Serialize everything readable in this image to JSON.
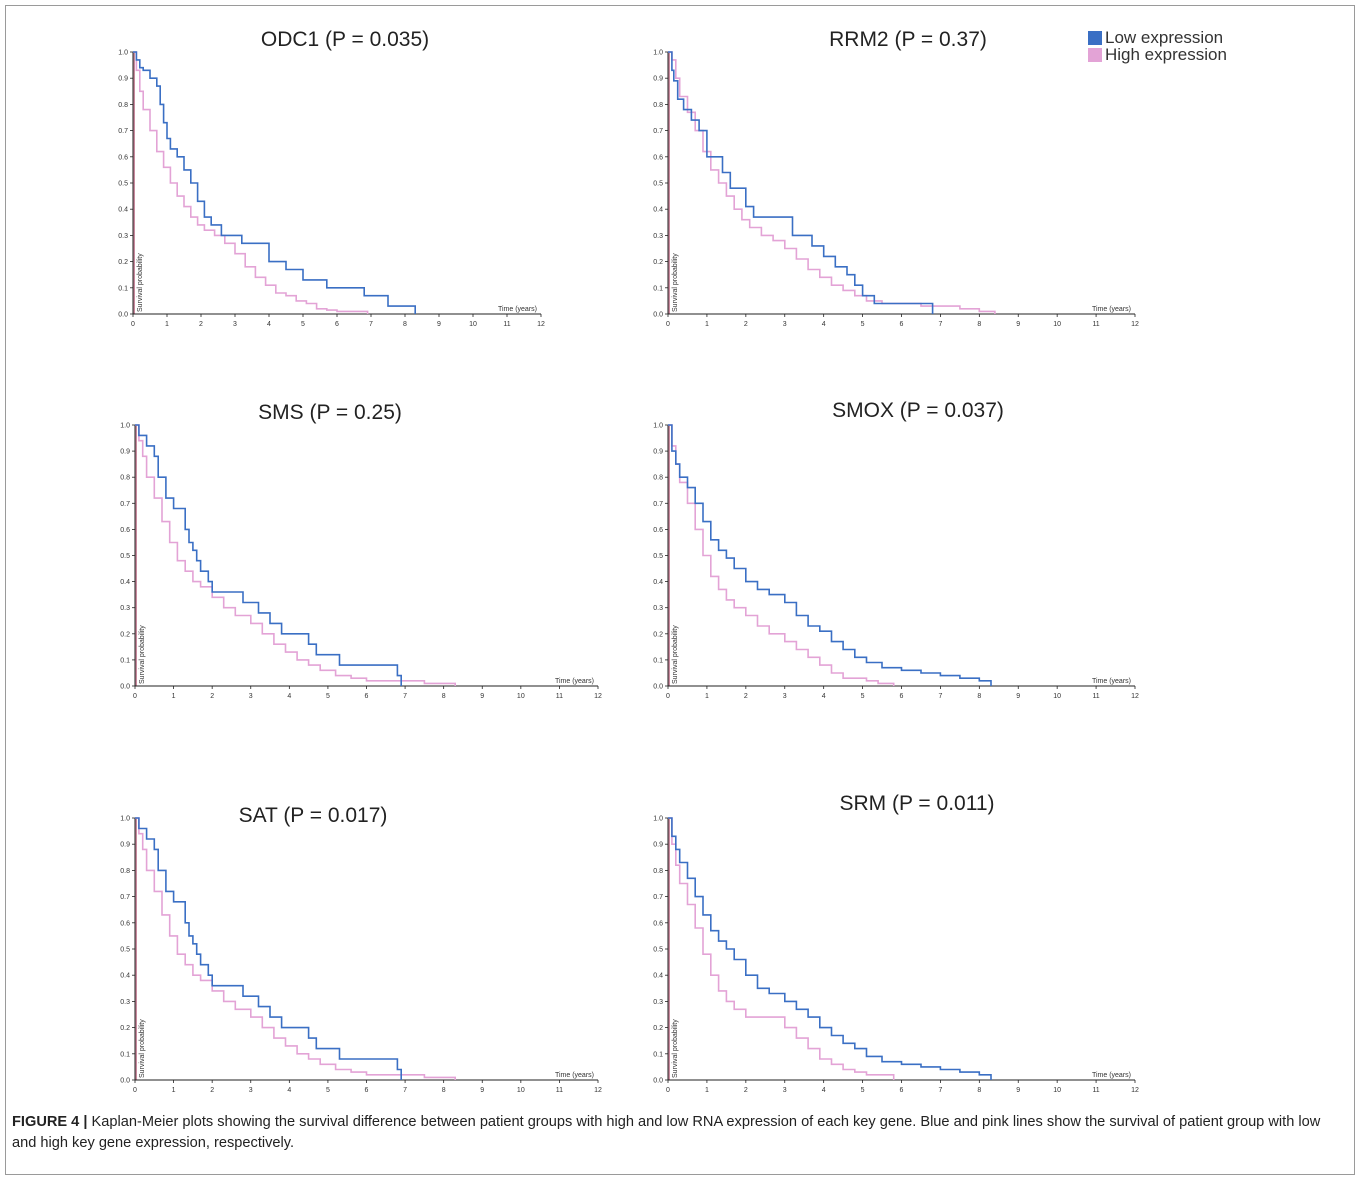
{
  "legend": {
    "low": {
      "label": "Low expression",
      "color": "#3a6fc4"
    },
    "high": {
      "label": "High expression",
      "color": "#e3a3d6"
    }
  },
  "caption": {
    "prefix": "FIGURE 4 |",
    "text": "Kaplan-Meier plots showing the survival difference between patient groups with high and low RNA expression of each key gene. Blue and pink lines show the survival of patient group with low and high key gene expression, respectively."
  },
  "chart_data": [
    {
      "type": "line",
      "title": "ODC1 (P = 0.035)",
      "xlabel": "Time (years)",
      "ylabel": "Survival probability",
      "xlim": [
        0,
        12
      ],
      "ylim": [
        0,
        1
      ],
      "x_ticks": [
        "0",
        "1",
        "2",
        "3",
        "4",
        "5",
        "6",
        "7",
        "8",
        "9",
        "10",
        "11",
        "12"
      ],
      "y_ticks": [
        "0.0",
        "0.1",
        "0.2",
        "0.3",
        "0.4",
        "0.5",
        "0.6",
        "0.7",
        "0.8",
        "0.9",
        "1.0"
      ],
      "series": [
        {
          "name": "Low expression",
          "x": [
            0,
            0.1,
            0.2,
            0.3,
            0.5,
            0.7,
            0.8,
            0.9,
            1.0,
            1.1,
            1.3,
            1.5,
            1.7,
            1.9,
            2.1,
            2.3,
            2.6,
            3.2,
            4.0,
            4.5,
            5.0,
            5.7,
            6.3,
            6.8,
            7.5,
            8.0,
            8.3
          ],
          "y": [
            1.0,
            0.97,
            0.94,
            0.93,
            0.9,
            0.87,
            0.8,
            0.73,
            0.67,
            0.63,
            0.6,
            0.55,
            0.5,
            0.43,
            0.37,
            0.34,
            0.3,
            0.27,
            0.2,
            0.17,
            0.13,
            0.1,
            0.1,
            0.07,
            0.03,
            0.03,
            0.0
          ]
        },
        {
          "name": "High expression",
          "x": [
            0,
            0.1,
            0.2,
            0.3,
            0.5,
            0.7,
            0.9,
            1.1,
            1.3,
            1.5,
            1.7,
            1.9,
            2.1,
            2.4,
            2.7,
            3.0,
            3.3,
            3.6,
            3.9,
            4.2,
            4.5,
            4.8,
            5.1,
            5.4,
            5.7,
            6.0,
            6.5,
            6.9
          ],
          "y": [
            1.0,
            0.93,
            0.85,
            0.78,
            0.7,
            0.62,
            0.56,
            0.5,
            0.45,
            0.41,
            0.37,
            0.34,
            0.32,
            0.3,
            0.27,
            0.23,
            0.18,
            0.14,
            0.11,
            0.08,
            0.07,
            0.05,
            0.04,
            0.02,
            0.015,
            0.01,
            0.01,
            0.0
          ]
        }
      ]
    },
    {
      "type": "line",
      "title": "RRM2 (P = 0.37)",
      "xlabel": "Time (years)",
      "ylabel": "Survival probability",
      "xlim": [
        0,
        12
      ],
      "ylim": [
        0,
        1
      ],
      "x_ticks": [
        "0",
        "1",
        "2",
        "3",
        "4",
        "5",
        "6",
        "7",
        "8",
        "9",
        "10",
        "11",
        "12"
      ],
      "y_ticks": [
        "0.0",
        "0.1",
        "0.2",
        "0.3",
        "0.4",
        "0.5",
        "0.6",
        "0.7",
        "0.8",
        "0.9",
        "1.0"
      ],
      "series": [
        {
          "name": "Low expression",
          "x": [
            0,
            0.1,
            0.15,
            0.25,
            0.4,
            0.6,
            0.8,
            1.0,
            1.4,
            1.6,
            2.0,
            2.2,
            3.2,
            3.7,
            4.0,
            4.3,
            4.6,
            4.8,
            5.0,
            5.3,
            5.7,
            6.2,
            6.8
          ],
          "y": [
            1.0,
            0.93,
            0.89,
            0.82,
            0.78,
            0.74,
            0.7,
            0.6,
            0.54,
            0.48,
            0.41,
            0.37,
            0.3,
            0.26,
            0.22,
            0.18,
            0.15,
            0.11,
            0.07,
            0.04,
            0.04,
            0.04,
            0.0
          ]
        },
        {
          "name": "High expression",
          "x": [
            0,
            0.1,
            0.2,
            0.3,
            0.5,
            0.7,
            0.9,
            1.1,
            1.3,
            1.5,
            1.7,
            1.9,
            2.1,
            2.4,
            2.7,
            3.0,
            3.3,
            3.6,
            3.9,
            4.2,
            4.5,
            4.8,
            5.1,
            5.5,
            6.0,
            6.5,
            7.0,
            7.5,
            8.0,
            8.4
          ],
          "y": [
            1.0,
            0.97,
            0.9,
            0.83,
            0.77,
            0.7,
            0.62,
            0.55,
            0.5,
            0.45,
            0.4,
            0.36,
            0.33,
            0.3,
            0.28,
            0.25,
            0.21,
            0.17,
            0.14,
            0.11,
            0.09,
            0.07,
            0.05,
            0.04,
            0.04,
            0.03,
            0.03,
            0.02,
            0.01,
            0.0
          ]
        }
      ]
    },
    {
      "type": "line",
      "title": "SMS (P = 0.25)",
      "xlabel": "Time (years)",
      "ylabel": "Survival probability",
      "xlim": [
        0,
        12
      ],
      "ylim": [
        0,
        1
      ],
      "x_ticks": [
        "0",
        "1",
        "2",
        "3",
        "4",
        "5",
        "6",
        "7",
        "8",
        "9",
        "10",
        "11",
        "12"
      ],
      "y_ticks": [
        "0.0",
        "0.1",
        "0.2",
        "0.3",
        "0.4",
        "0.5",
        "0.6",
        "0.7",
        "0.8",
        "0.9",
        "1.0"
      ],
      "series": [
        {
          "name": "Low expression",
          "x": [
            0,
            0.1,
            0.3,
            0.5,
            0.6,
            0.8,
            1.0,
            1.3,
            1.4,
            1.5,
            1.6,
            1.7,
            1.9,
            2.0,
            2.5,
            2.8,
            3.2,
            3.5,
            3.8,
            4.5,
            4.7,
            5.3,
            5.7,
            6.2,
            6.8,
            6.9
          ],
          "y": [
            1.0,
            0.96,
            0.92,
            0.88,
            0.8,
            0.72,
            0.68,
            0.6,
            0.55,
            0.52,
            0.48,
            0.44,
            0.4,
            0.36,
            0.36,
            0.32,
            0.28,
            0.24,
            0.2,
            0.16,
            0.12,
            0.08,
            0.08,
            0.08,
            0.04,
            0.0
          ]
        },
        {
          "name": "High expression",
          "x": [
            0,
            0.1,
            0.2,
            0.3,
            0.5,
            0.7,
            0.9,
            1.1,
            1.3,
            1.5,
            1.7,
            2.0,
            2.3,
            2.6,
            3.0,
            3.3,
            3.6,
            3.9,
            4.2,
            4.5,
            4.8,
            5.2,
            5.6,
            6.0,
            6.5,
            7.0,
            7.5,
            8.0,
            8.3
          ],
          "y": [
            1.0,
            0.94,
            0.88,
            0.8,
            0.72,
            0.63,
            0.55,
            0.48,
            0.44,
            0.4,
            0.38,
            0.34,
            0.3,
            0.27,
            0.24,
            0.2,
            0.16,
            0.13,
            0.1,
            0.08,
            0.06,
            0.04,
            0.03,
            0.02,
            0.02,
            0.02,
            0.01,
            0.01,
            0.0
          ]
        }
      ]
    },
    {
      "type": "line",
      "title": "SMOX (P = 0.037)",
      "xlabel": "Time (years)",
      "ylabel": "Survival probability",
      "xlim": [
        0,
        12
      ],
      "ylim": [
        0,
        1
      ],
      "x_ticks": [
        "0",
        "1",
        "2",
        "3",
        "4",
        "5",
        "6",
        "7",
        "8",
        "9",
        "10",
        "11",
        "12"
      ],
      "y_ticks": [
        "0.0",
        "0.1",
        "0.2",
        "0.3",
        "0.4",
        "0.5",
        "0.6",
        "0.7",
        "0.8",
        "0.9",
        "1.0"
      ],
      "series": [
        {
          "name": "Low expression",
          "x": [
            0,
            0.1,
            0.2,
            0.3,
            0.5,
            0.7,
            0.9,
            1.1,
            1.3,
            1.5,
            1.7,
            2.0,
            2.3,
            2.6,
            3.0,
            3.3,
            3.6,
            3.9,
            4.2,
            4.5,
            4.8,
            5.1,
            5.5,
            6.0,
            6.5,
            7.0,
            7.5,
            8.0,
            8.3
          ],
          "y": [
            1.0,
            0.9,
            0.85,
            0.8,
            0.76,
            0.7,
            0.63,
            0.56,
            0.52,
            0.49,
            0.45,
            0.4,
            0.37,
            0.35,
            0.32,
            0.27,
            0.23,
            0.21,
            0.17,
            0.14,
            0.11,
            0.09,
            0.07,
            0.06,
            0.05,
            0.04,
            0.03,
            0.02,
            0.0
          ]
        },
        {
          "name": "High expression",
          "x": [
            0,
            0.1,
            0.2,
            0.3,
            0.5,
            0.7,
            0.9,
            1.1,
            1.3,
            1.5,
            1.7,
            2.0,
            2.3,
            2.6,
            3.0,
            3.3,
            3.6,
            3.9,
            4.2,
            4.5,
            4.8,
            5.1,
            5.4,
            5.8
          ],
          "y": [
            1.0,
            0.92,
            0.85,
            0.78,
            0.7,
            0.6,
            0.5,
            0.42,
            0.37,
            0.33,
            0.3,
            0.27,
            0.23,
            0.2,
            0.17,
            0.14,
            0.11,
            0.08,
            0.05,
            0.03,
            0.03,
            0.02,
            0.01,
            0.0
          ]
        }
      ]
    },
    {
      "type": "line",
      "title": "SAT (P = 0.017)",
      "xlabel": "Time (years)",
      "ylabel": "Survival probability",
      "xlim": [
        0,
        12
      ],
      "ylim": [
        0,
        1
      ],
      "x_ticks": [
        "0",
        "1",
        "2",
        "3",
        "4",
        "5",
        "6",
        "7",
        "8",
        "9",
        "10",
        "11",
        "12"
      ],
      "y_ticks": [
        "0.0",
        "0.1",
        "0.2",
        "0.3",
        "0.4",
        "0.5",
        "0.6",
        "0.7",
        "0.8",
        "0.9",
        "1.0"
      ],
      "series": [
        {
          "name": "Low expression",
          "x": [
            0,
            0.1,
            0.3,
            0.5,
            0.6,
            0.8,
            1.0,
            1.3,
            1.4,
            1.5,
            1.6,
            1.7,
            1.9,
            2.0,
            2.5,
            2.8,
            3.2,
            3.5,
            3.8,
            4.5,
            4.7,
            5.3,
            5.7,
            6.2,
            6.8,
            6.9
          ],
          "y": [
            1.0,
            0.96,
            0.92,
            0.88,
            0.8,
            0.72,
            0.68,
            0.6,
            0.55,
            0.52,
            0.48,
            0.44,
            0.4,
            0.36,
            0.36,
            0.32,
            0.28,
            0.24,
            0.2,
            0.16,
            0.12,
            0.08,
            0.08,
            0.08,
            0.04,
            0.0
          ]
        },
        {
          "name": "High expression",
          "x": [
            0,
            0.1,
            0.2,
            0.3,
            0.5,
            0.7,
            0.9,
            1.1,
            1.3,
            1.5,
            1.7,
            2.0,
            2.3,
            2.6,
            3.0,
            3.3,
            3.6,
            3.9,
            4.2,
            4.5,
            4.8,
            5.2,
            5.6,
            6.0,
            6.5,
            7.0,
            7.5,
            8.0,
            8.3
          ],
          "y": [
            1.0,
            0.94,
            0.88,
            0.8,
            0.72,
            0.63,
            0.55,
            0.48,
            0.44,
            0.4,
            0.38,
            0.34,
            0.3,
            0.27,
            0.24,
            0.2,
            0.16,
            0.13,
            0.1,
            0.08,
            0.06,
            0.04,
            0.03,
            0.02,
            0.02,
            0.02,
            0.01,
            0.01,
            0.0
          ]
        }
      ]
    },
    {
      "type": "line",
      "title": "SRM (P = 0.011)",
      "xlabel": "Time (years)",
      "ylabel": "Survival probability",
      "xlim": [
        0,
        12
      ],
      "ylim": [
        0,
        1
      ],
      "x_ticks": [
        "0",
        "1",
        "2",
        "3",
        "4",
        "5",
        "6",
        "7",
        "8",
        "9",
        "10",
        "11",
        "12"
      ],
      "y_ticks": [
        "0.0",
        "0.1",
        "0.2",
        "0.3",
        "0.4",
        "0.5",
        "0.6",
        "0.7",
        "0.8",
        "0.9",
        "1.0"
      ],
      "series": [
        {
          "name": "Low expression",
          "x": [
            0,
            0.1,
            0.2,
            0.3,
            0.5,
            0.7,
            0.9,
            1.1,
            1.3,
            1.5,
            1.7,
            2.0,
            2.3,
            2.6,
            3.0,
            3.3,
            3.6,
            3.9,
            4.2,
            4.5,
            4.8,
            5.1,
            5.5,
            6.0,
            6.5,
            7.0,
            7.5,
            8.0,
            8.3
          ],
          "y": [
            1.0,
            0.93,
            0.88,
            0.83,
            0.77,
            0.7,
            0.63,
            0.57,
            0.53,
            0.5,
            0.46,
            0.4,
            0.35,
            0.33,
            0.3,
            0.27,
            0.24,
            0.2,
            0.17,
            0.14,
            0.12,
            0.09,
            0.07,
            0.06,
            0.05,
            0.04,
            0.03,
            0.02,
            0.0
          ]
        },
        {
          "name": "High expression",
          "x": [
            0,
            0.1,
            0.2,
            0.3,
            0.5,
            0.7,
            0.9,
            1.1,
            1.3,
            1.5,
            1.7,
            2.0,
            2.3,
            2.6,
            3.0,
            3.3,
            3.6,
            3.9,
            4.2,
            4.5,
            4.8,
            5.1,
            5.4,
            5.8
          ],
          "y": [
            1.0,
            0.9,
            0.82,
            0.75,
            0.67,
            0.58,
            0.48,
            0.4,
            0.34,
            0.3,
            0.27,
            0.24,
            0.24,
            0.24,
            0.2,
            0.16,
            0.12,
            0.08,
            0.06,
            0.04,
            0.03,
            0.02,
            0.02,
            0.0
          ]
        }
      ]
    }
  ]
}
